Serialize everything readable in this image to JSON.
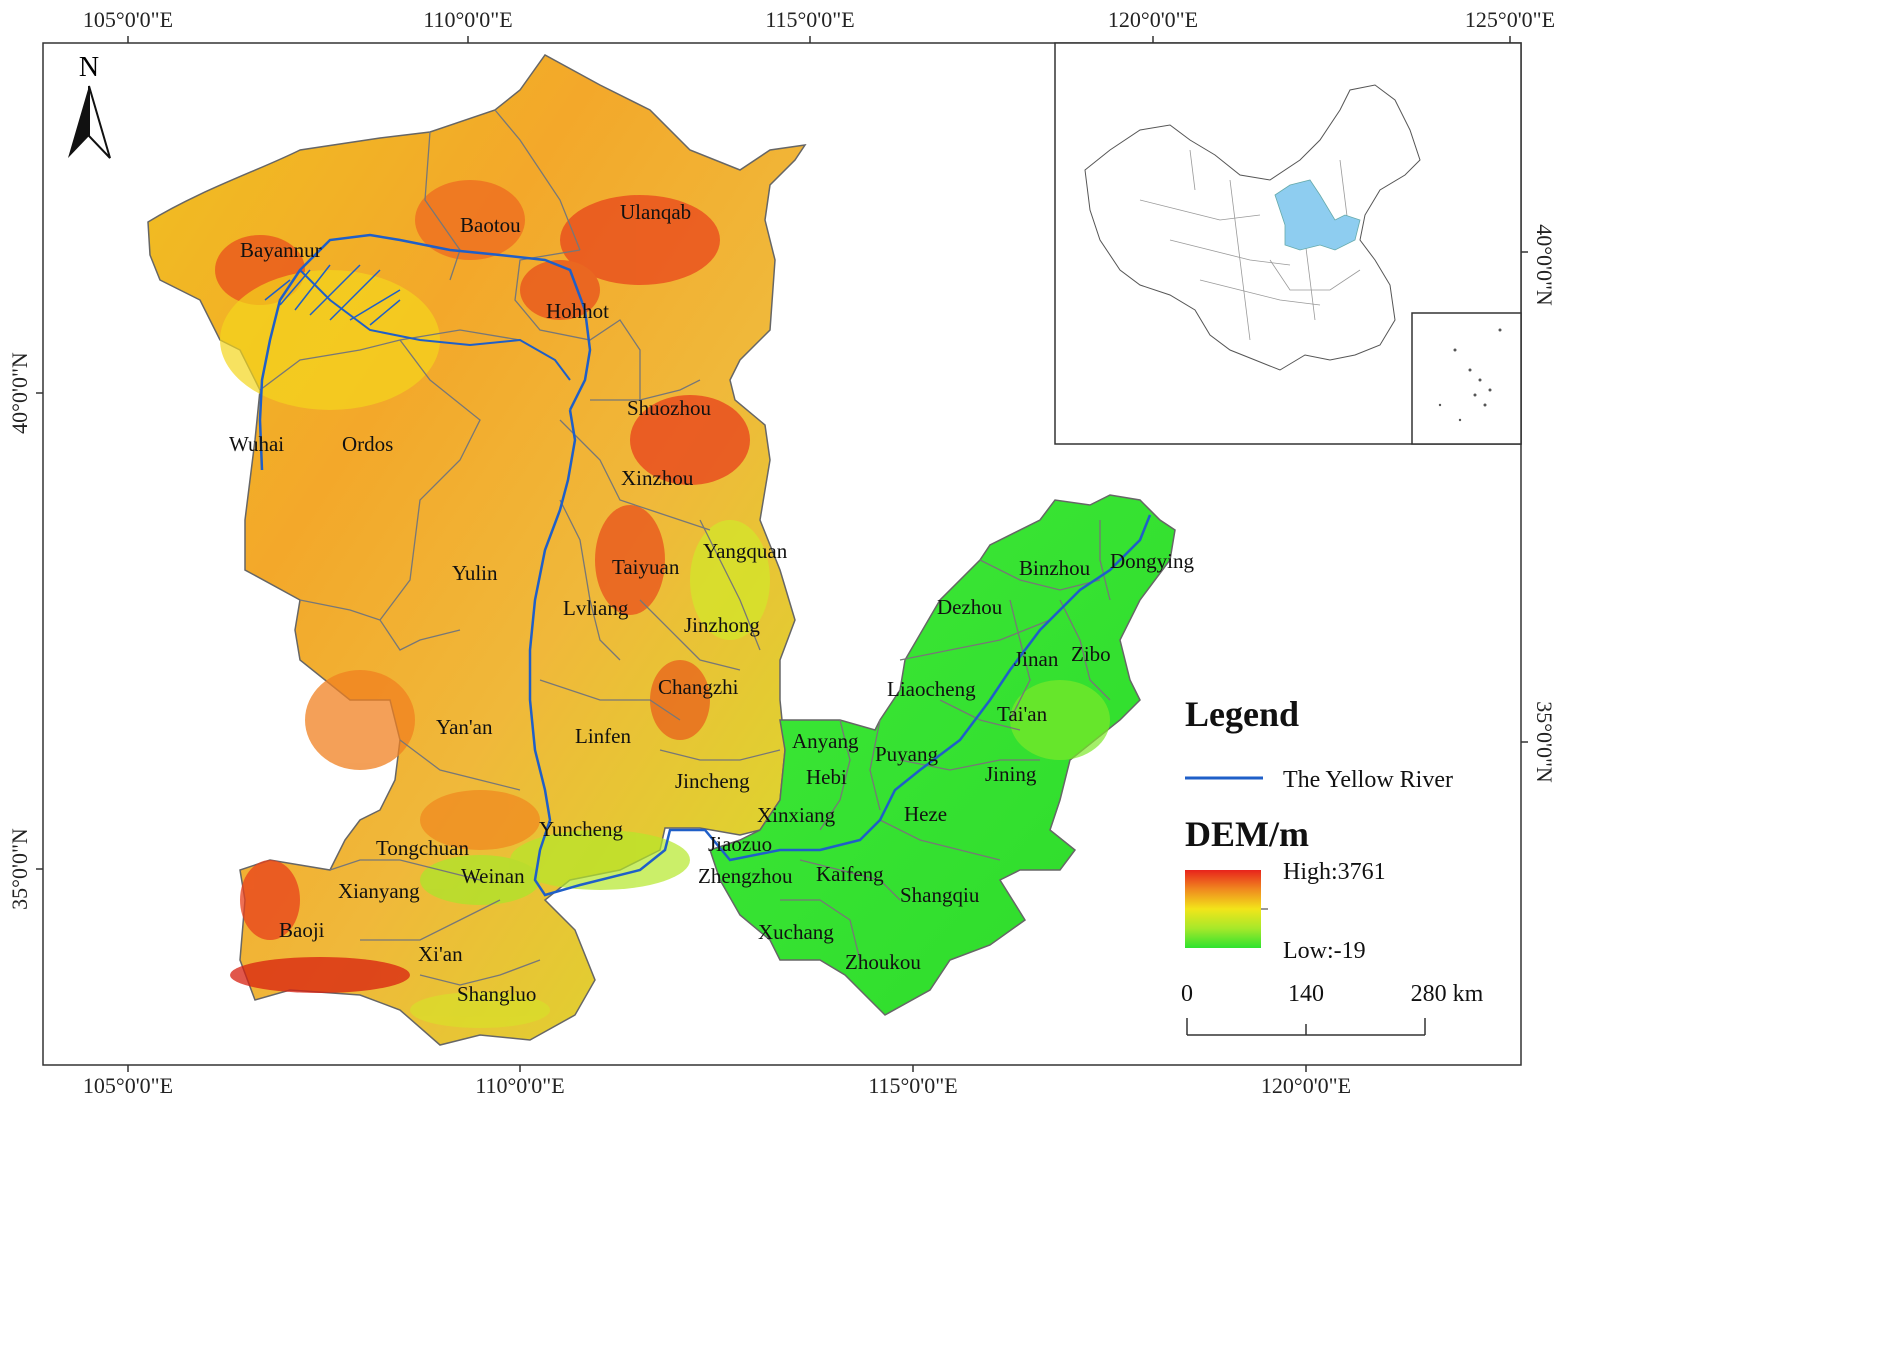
{
  "coordinates": {
    "top": [
      "105°0'0\"E",
      "110°0'0\"E",
      "115°0'0\"E",
      "120°0'0\"E",
      "125°0'0\"E"
    ],
    "bottom": [
      "105°0'0\"E",
      "110°0'0\"E",
      "115°0'0\"E",
      "120°0'0\"E"
    ],
    "left": [
      "40°0'0\"N",
      "35°0'0\"N"
    ],
    "right": [
      "40°0'0\"N",
      "35°0'0\"N"
    ]
  },
  "north_arrow": {
    "label": "N"
  },
  "cities": [
    "Bayannur",
    "Baotou",
    "Ulanqab",
    "Hohhot",
    "Shuozhou",
    "Wuhai",
    "Ordos",
    "Xinzhou",
    "Yangquan",
    "Taiyuan",
    "Yulin",
    "Lvliang",
    "Jinzhong",
    "Changzhi",
    "Yan'an",
    "Linfen",
    "Anyang",
    "Puyang",
    "Hebi",
    "Jincheng",
    "Xinxiang",
    "Yuncheng",
    "Jiaozuo",
    "Tongchuan",
    "Weinan",
    "Xianyang",
    "Zhengzhou",
    "Kaifeng",
    "Shangqiu",
    "Baoji",
    "Xuchang",
    "Xi'an",
    "Zhoukou",
    "Shangluo",
    "Heze",
    "Jining",
    "Tai'an",
    "Liaocheng",
    "Jinan",
    "Zibo",
    "Dezhou",
    "Binzhou",
    "Dongying"
  ],
  "legend": {
    "title": "Legend",
    "river_label": "The Yellow  River",
    "dem_title": "DEM/m",
    "dem_high": "High:3761",
    "dem_low": "Low:-19",
    "colors": {
      "high": "#e8231c",
      "mid": "#f2e51a",
      "low": "#2ee32e",
      "river": "#1f5fc8"
    }
  },
  "scale_bar": {
    "labels": [
      "0",
      "140",
      "280 km"
    ]
  }
}
